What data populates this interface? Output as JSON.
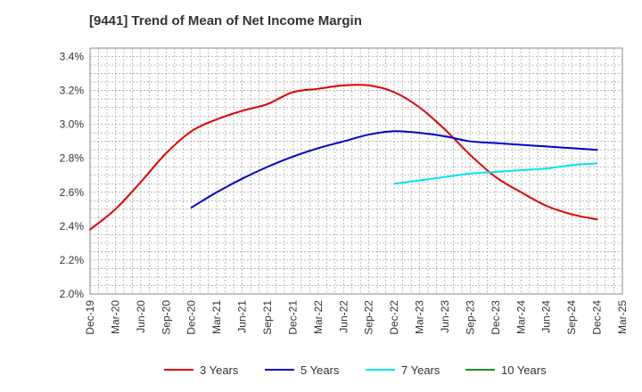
{
  "chart_data": {
    "type": "line",
    "title": "[9441]  Trend of Mean of Net Income Margin",
    "xlabel": "",
    "ylabel": "",
    "x_ticks": [
      "Dec-19",
      "Mar-20",
      "Jun-20",
      "Sep-20",
      "Dec-20",
      "Mar-21",
      "Jun-21",
      "Sep-21",
      "Dec-21",
      "Mar-22",
      "Jun-22",
      "Sep-22",
      "Dec-22",
      "Mar-23",
      "Jun-23",
      "Sep-23",
      "Dec-23",
      "Mar-24",
      "Jun-24",
      "Sep-24",
      "Dec-24",
      "Mar-25"
    ],
    "y_ticks": [
      "2.0%",
      "2.2%",
      "2.4%",
      "2.6%",
      "2.8%",
      "3.0%",
      "3.2%",
      "3.4%"
    ],
    "ylim": [
      2.0,
      3.45
    ],
    "grid": true,
    "legend_position": "bottom",
    "series": [
      {
        "name": "3 Years",
        "color": "#dd0000",
        "values": [
          2.38,
          2.5,
          2.66,
          2.83,
          2.96,
          3.03,
          3.08,
          3.12,
          3.19,
          3.21,
          3.23,
          3.23,
          3.19,
          3.1,
          2.97,
          2.82,
          2.69,
          2.6,
          2.52,
          2.47,
          2.44,
          null
        ]
      },
      {
        "name": "5 Years",
        "color": "#0000cc",
        "values": [
          null,
          null,
          null,
          null,
          2.51,
          2.6,
          2.68,
          2.75,
          2.81,
          2.86,
          2.9,
          2.94,
          2.96,
          2.95,
          2.93,
          2.9,
          2.89,
          2.88,
          2.87,
          2.86,
          2.85,
          null
        ]
      },
      {
        "name": "7 Years",
        "color": "#00e5ee",
        "values": [
          null,
          null,
          null,
          null,
          null,
          null,
          null,
          null,
          null,
          null,
          null,
          null,
          2.65,
          2.67,
          2.69,
          2.71,
          2.72,
          2.73,
          2.74,
          2.76,
          2.77,
          null
        ]
      },
      {
        "name": "10 Years",
        "color": "#228b22",
        "values": [
          null,
          null,
          null,
          null,
          null,
          null,
          null,
          null,
          null,
          null,
          null,
          null,
          null,
          null,
          null,
          null,
          null,
          null,
          null,
          null,
          null,
          null
        ]
      }
    ]
  }
}
